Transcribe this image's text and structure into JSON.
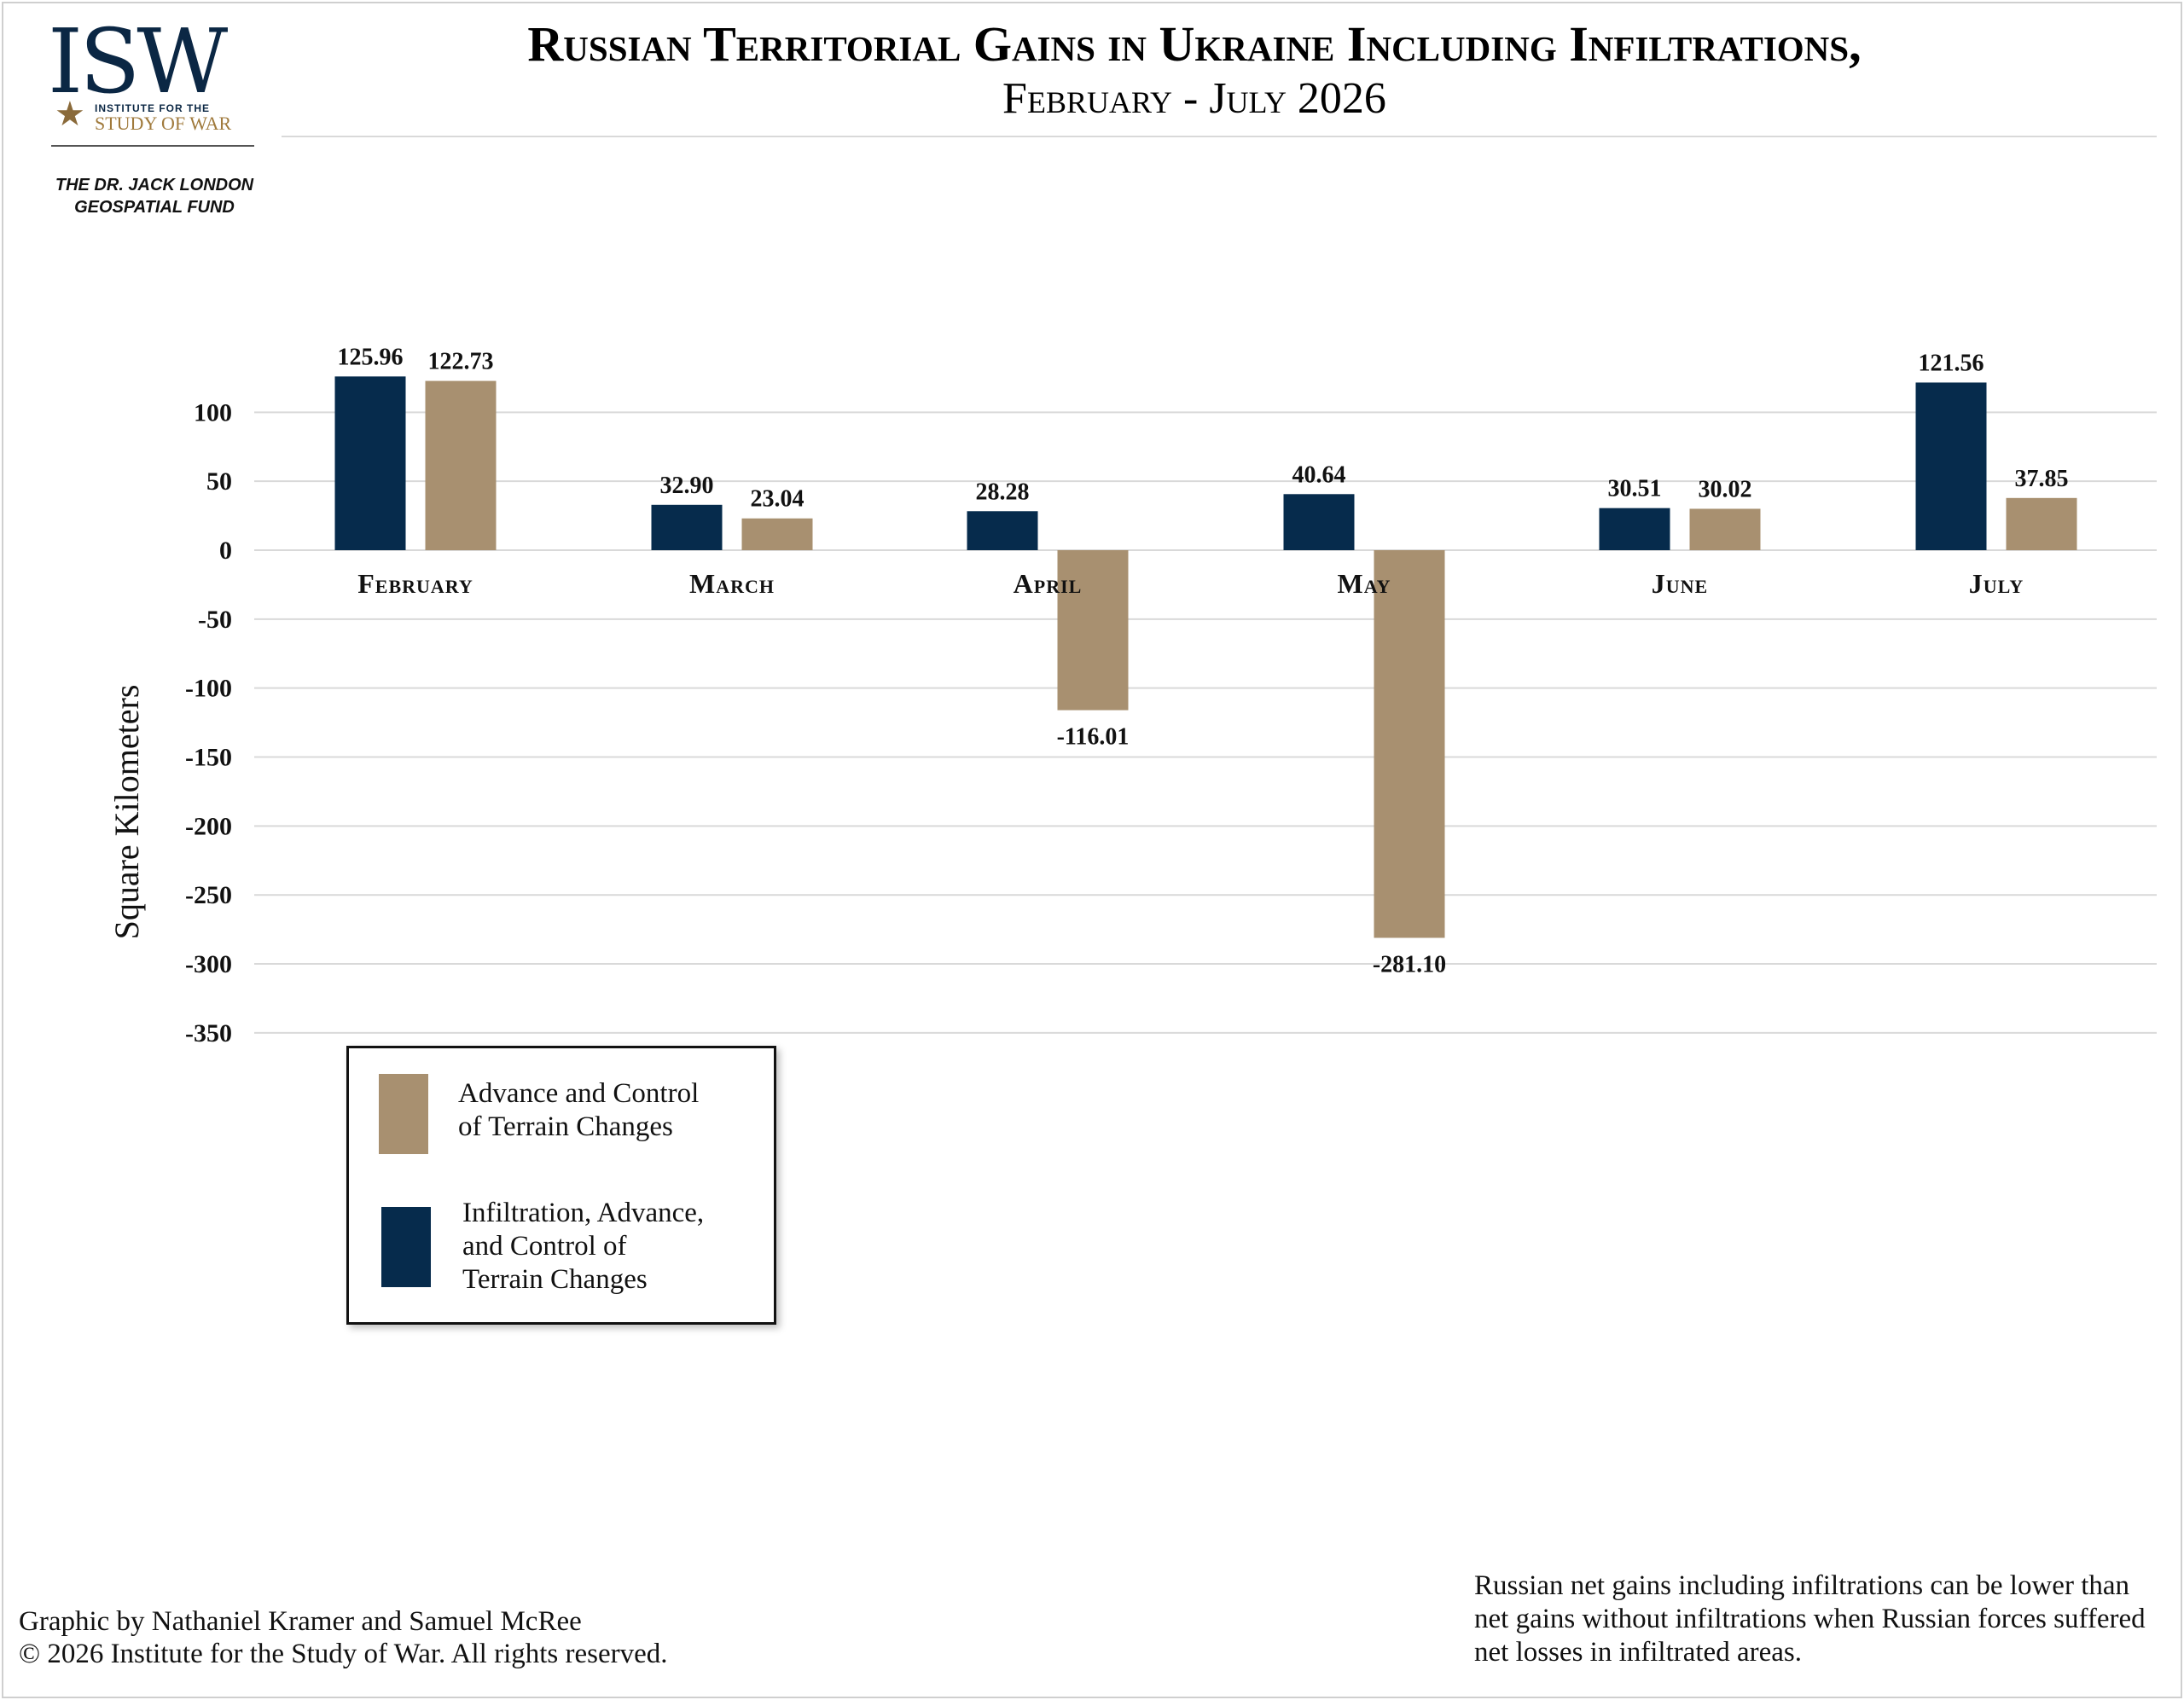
{
  "logo": {
    "wordmark": "ISW",
    "line1": "INSTITUTE FOR THE",
    "line2": "STUDY OF WAR",
    "fund_line1": "THE DR. JACK LONDON",
    "fund_line2": "GEOSPATIAL FUND"
  },
  "header": {
    "title": "Russian Territorial Gains in Ukraine Including Infiltrations,",
    "subtitle": "February - July 2026"
  },
  "colors": {
    "infiltration": "#062b4c",
    "advance": "#a89070",
    "gridline": "#d9d9d9"
  },
  "chart_data": {
    "type": "bar",
    "title": "Russian Territorial Gains in Ukraine Including Infiltrations, February - July 2026",
    "categories": [
      "February",
      "March",
      "April",
      "May",
      "June",
      "July"
    ],
    "series": [
      {
        "name": "Infiltration, Advance, and Control of Terrain Changes",
        "color": "#062b4c",
        "values": [
          125.96,
          32.9,
          28.28,
          40.64,
          30.51,
          121.56
        ],
        "labels": [
          "125.96",
          "32.90",
          "28.28",
          "40.64",
          "30.51",
          "121.56"
        ]
      },
      {
        "name": "Advance and Control of Terrain Changes",
        "color": "#a89070",
        "values": [
          122.73,
          23.04,
          -116.01,
          -281.1,
          30.02,
          37.85
        ],
        "labels": [
          "122.73",
          "23.04",
          "-116.01",
          "-281.10",
          "30.02",
          "37.85"
        ]
      }
    ],
    "ylabel": "Square Kilometers",
    "xlabel": "",
    "ylim": [
      -350,
      150
    ],
    "yticks": [
      100,
      50,
      0,
      -50,
      -100,
      -150,
      -200,
      -250,
      -300,
      -350
    ],
    "grid": true,
    "legend_position": "bottom-left"
  },
  "legend": {
    "items": [
      {
        "label": "Advance and Control\nof Terrain Changes",
        "color": "#a89070"
      },
      {
        "label": "Infiltration, Advance,\nand Control of\nTerrain Changes",
        "color": "#062b4c"
      }
    ]
  },
  "footer": {
    "credit_line1": "Graphic by Nathaniel Kramer and Samuel McRee",
    "credit_line2": "© 2026 Institute for the Study of War. All rights reserved.",
    "note": "Russian net gains including infiltrations can be lower than net gains without infiltrations when Russian forces suffered net losses in infiltrated areas."
  }
}
